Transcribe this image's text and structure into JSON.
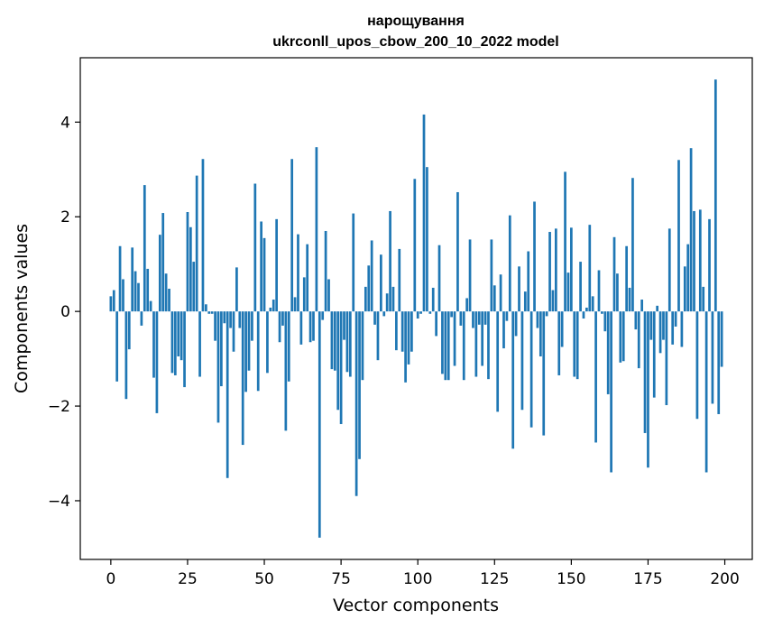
{
  "chart_data": {
    "type": "bar",
    "title_line1": "нарощування",
    "title_line2": "ukrconll_upos_cbow_200_10_2022 model",
    "xlabel": "Vector components",
    "ylabel": "Components values",
    "xlim": [
      -9.95,
      208.95
    ],
    "ylim": [
      -5.24,
      5.36
    ],
    "xticks": [
      0,
      25,
      50,
      75,
      100,
      125,
      150,
      175,
      200
    ],
    "yticks": [
      -4,
      -2,
      0,
      2,
      4
    ],
    "ytick_labels": [
      "−4",
      "−2",
      "0",
      "2",
      "4"
    ],
    "bar_color": "#1f77b4",
    "x": [
      0,
      1,
      2,
      3,
      4,
      5,
      6,
      7,
      8,
      9,
      10,
      11,
      12,
      13,
      14,
      15,
      16,
      17,
      18,
      19,
      20,
      21,
      22,
      23,
      24,
      25,
      26,
      27,
      28,
      29,
      30,
      31,
      32,
      33,
      34,
      35,
      36,
      37,
      38,
      39,
      40,
      41,
      42,
      43,
      44,
      45,
      46,
      47,
      48,
      49,
      50,
      51,
      52,
      53,
      54,
      55,
      56,
      57,
      58,
      59,
      60,
      61,
      62,
      63,
      64,
      65,
      66,
      67,
      68,
      69,
      70,
      71,
      72,
      73,
      74,
      75,
      76,
      77,
      78,
      79,
      80,
      81,
      82,
      83,
      84,
      85,
      86,
      87,
      88,
      89,
      90,
      91,
      92,
      93,
      94,
      95,
      96,
      97,
      98,
      99,
      100,
      101,
      102,
      103,
      104,
      105,
      106,
      107,
      108,
      109,
      110,
      111,
      112,
      113,
      114,
      115,
      116,
      117,
      118,
      119,
      120,
      121,
      122,
      123,
      124,
      125,
      126,
      127,
      128,
      129,
      130,
      131,
      132,
      133,
      134,
      135,
      136,
      137,
      138,
      139,
      140,
      141,
      142,
      143,
      144,
      145,
      146,
      147,
      148,
      149,
      150,
      151,
      152,
      153,
      154,
      155,
      156,
      157,
      158,
      159,
      160,
      161,
      162,
      163,
      164,
      165,
      166,
      167,
      168,
      169,
      170,
      171,
      172,
      173,
      174,
      175,
      176,
      177,
      178,
      179,
      180,
      181,
      182,
      183,
      184,
      185,
      186,
      187,
      188,
      189,
      190,
      191,
      192,
      193,
      194,
      195,
      196,
      197,
      198,
      199
    ],
    "values": [
      0.32,
      0.45,
      -1.48,
      1.38,
      0.68,
      -1.85,
      -0.8,
      1.35,
      0.85,
      0.6,
      -0.3,
      2.67,
      0.9,
      0.22,
      -1.4,
      -2.15,
      1.62,
      2.08,
      0.8,
      0.48,
      -1.3,
      -1.35,
      -0.95,
      -1.03,
      -1.6,
      2.1,
      1.78,
      1.05,
      2.87,
      -1.38,
      3.22,
      0.15,
      -0.05,
      -0.05,
      -0.62,
      -2.35,
      -1.58,
      -0.25,
      -3.52,
      -0.35,
      -0.85,
      0.93,
      -0.35,
      -2.82,
      -1.7,
      -1.25,
      -0.62,
      2.7,
      -1.68,
      1.9,
      1.55,
      -1.3,
      0.08,
      0.25,
      1.95,
      -0.65,
      -0.3,
      -2.52,
      -1.48,
      3.22,
      0.3,
      1.63,
      -0.7,
      0.72,
      1.42,
      -0.65,
      -0.62,
      3.47,
      -4.78,
      -0.18,
      1.7,
      0.68,
      -1.22,
      -1.25,
      -2.08,
      -2.38,
      -0.6,
      -1.28,
      -1.38,
      2.07,
      -3.9,
      -3.12,
      -1.45,
      0.52,
      0.97,
      1.5,
      -0.28,
      -1.03,
      1.2,
      -0.1,
      0.38,
      2.12,
      0.52,
      -0.82,
      1.32,
      -0.85,
      -1.5,
      -1.12,
      -0.85,
      2.8,
      -0.15,
      -0.05,
      4.16,
      3.05,
      -0.05,
      0.5,
      -0.52,
      1.4,
      -1.32,
      -1.45,
      -1.45,
      -0.12,
      -1.15,
      2.52,
      -0.3,
      -1.45,
      0.28,
      1.52,
      -0.35,
      -1.38,
      -0.28,
      -1.15,
      -0.28,
      -1.43,
      1.52,
      0.55,
      -2.12,
      0.78,
      -0.78,
      -0.2,
      2.03,
      -2.9,
      -0.52,
      0.95,
      -2.08,
      0.42,
      1.27,
      -2.45,
      2.32,
      -0.35,
      -0.95,
      -2.62,
      -0.1,
      1.68,
      0.45,
      1.75,
      -1.35,
      -0.75,
      2.95,
      0.82,
      1.77,
      -1.38,
      -1.43,
      1.05,
      -0.15,
      0.08,
      1.83,
      0.32,
      -2.77,
      0.87,
      -0.05,
      -0.42,
      -1.75,
      -3.4,
      1.57,
      0.8,
      -1.08,
      -1.05,
      1.38,
      0.5,
      2.82,
      -0.38,
      -1.2,
      0.25,
      -2.57,
      -3.3,
      -0.6,
      -1.82,
      0.12,
      -0.88,
      -0.6,
      -1.98,
      1.75,
      -0.7,
      -0.32,
      3.2,
      -0.75,
      0.95,
      1.42,
      3.45,
      2.12,
      -2.27,
      2.15,
      0.52,
      -3.4,
      1.95,
      -1.95,
      4.9,
      -2.17,
      -1.17
    ]
  }
}
